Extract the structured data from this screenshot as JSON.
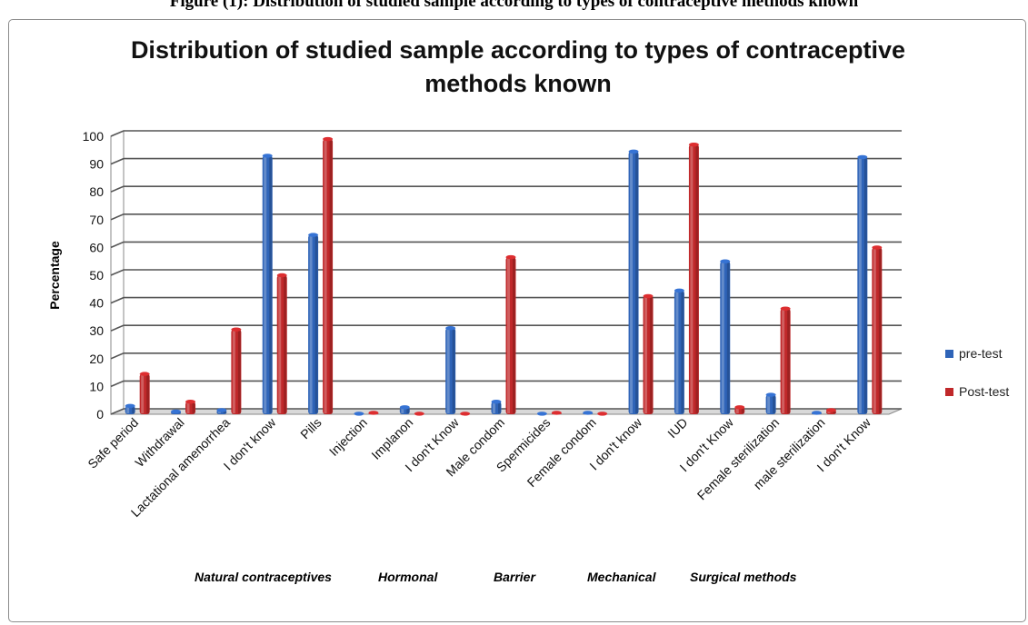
{
  "caption": "Figure (1): Distribution of studied sample according to types of contraceptive methods known",
  "chart_data": {
    "type": "bar",
    "title_lines": [
      "Distribution of studied sample according to types of contraceptive",
      "methods known"
    ],
    "ylabel": "Percentage",
    "xlabel": "",
    "ylim": [
      0,
      100
    ],
    "yticks": [
      0,
      10,
      20,
      30,
      40,
      50,
      60,
      70,
      80,
      90,
      100
    ],
    "grid": true,
    "legend_position": "right",
    "categories": [
      "Safe period",
      "Withdrawal",
      "Lactational amenorrhea",
      "I don't know",
      "Pills",
      "Injection",
      "Implanon",
      "I don't Know",
      "Male condom",
      "Spermicides",
      "Female condom",
      "I don't know",
      "IUD",
      "I don't Know",
      "Female sterilization",
      "male sterilization",
      "I don't Know"
    ],
    "series": [
      {
        "name": "pre-test",
        "color": "#2f64b8",
        "values": [
          3,
          1,
          1.5,
          93,
          64.5,
          0,
          2.5,
          31,
          4.5,
          0,
          0.5,
          94.5,
          44.5,
          55,
          7,
          0.5,
          92.5
        ]
      },
      {
        "name": "Post-test",
        "color": "#c0282a",
        "values": [
          14.5,
          4.5,
          30.5,
          50,
          99,
          0.5,
          0,
          0,
          56.5,
          0.5,
          0,
          42.5,
          97,
          2.5,
          38,
          1.5,
          60
        ]
      }
    ],
    "groups": [
      {
        "label": "Natural contraceptives",
        "span": [
          0,
          3
        ]
      },
      {
        "label": "Hormonal",
        "span": [
          4,
          7
        ]
      },
      {
        "label": "Barrier",
        "span": [
          8,
          10
        ]
      },
      {
        "label": "Mechanical",
        "span": [
          11,
          12
        ]
      },
      {
        "label": "Surgical methods",
        "span": [
          13,
          16
        ]
      }
    ]
  }
}
